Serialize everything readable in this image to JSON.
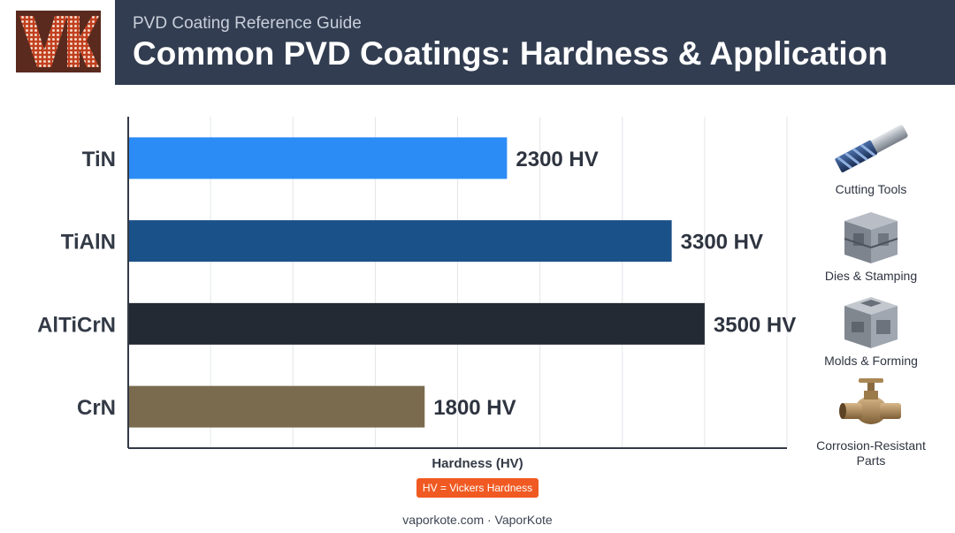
{
  "header": {
    "subtitle": "PVD Coating Reference Guide",
    "title": "Common PVD Coatings: Hardness & Application",
    "logo_icon": "vk-monogram-logo"
  },
  "chart_data": {
    "type": "bar",
    "orientation": "horizontal",
    "categories": [
      "TiN",
      "TiAlN",
      "AlTiCrN",
      "CrN"
    ],
    "values": [
      2300,
      3300,
      3500,
      1800
    ],
    "value_labels": [
      "2300 HV",
      "3300 HV",
      "3500 HV",
      "1800 HV"
    ],
    "colors": [
      "#2b8cf5",
      "#1b5189",
      "#242a33",
      "#7a6a4e"
    ],
    "xlabel": "Hardness (HV)",
    "xlim": [
      0,
      4000
    ],
    "grid": true
  },
  "legend_note": "HV = Vickers Hardness",
  "applications": [
    {
      "label": "Cutting Tools",
      "icon": "end-mill-icon"
    },
    {
      "label": "Dies & Stamping",
      "icon": "die-set-icon"
    },
    {
      "label": "Molds & Forming",
      "icon": "mold-block-icon"
    },
    {
      "label": "Corrosion-Resistant Parts",
      "icon": "valve-icon"
    }
  ],
  "footer": "vaporkote.com · VaporKote"
}
